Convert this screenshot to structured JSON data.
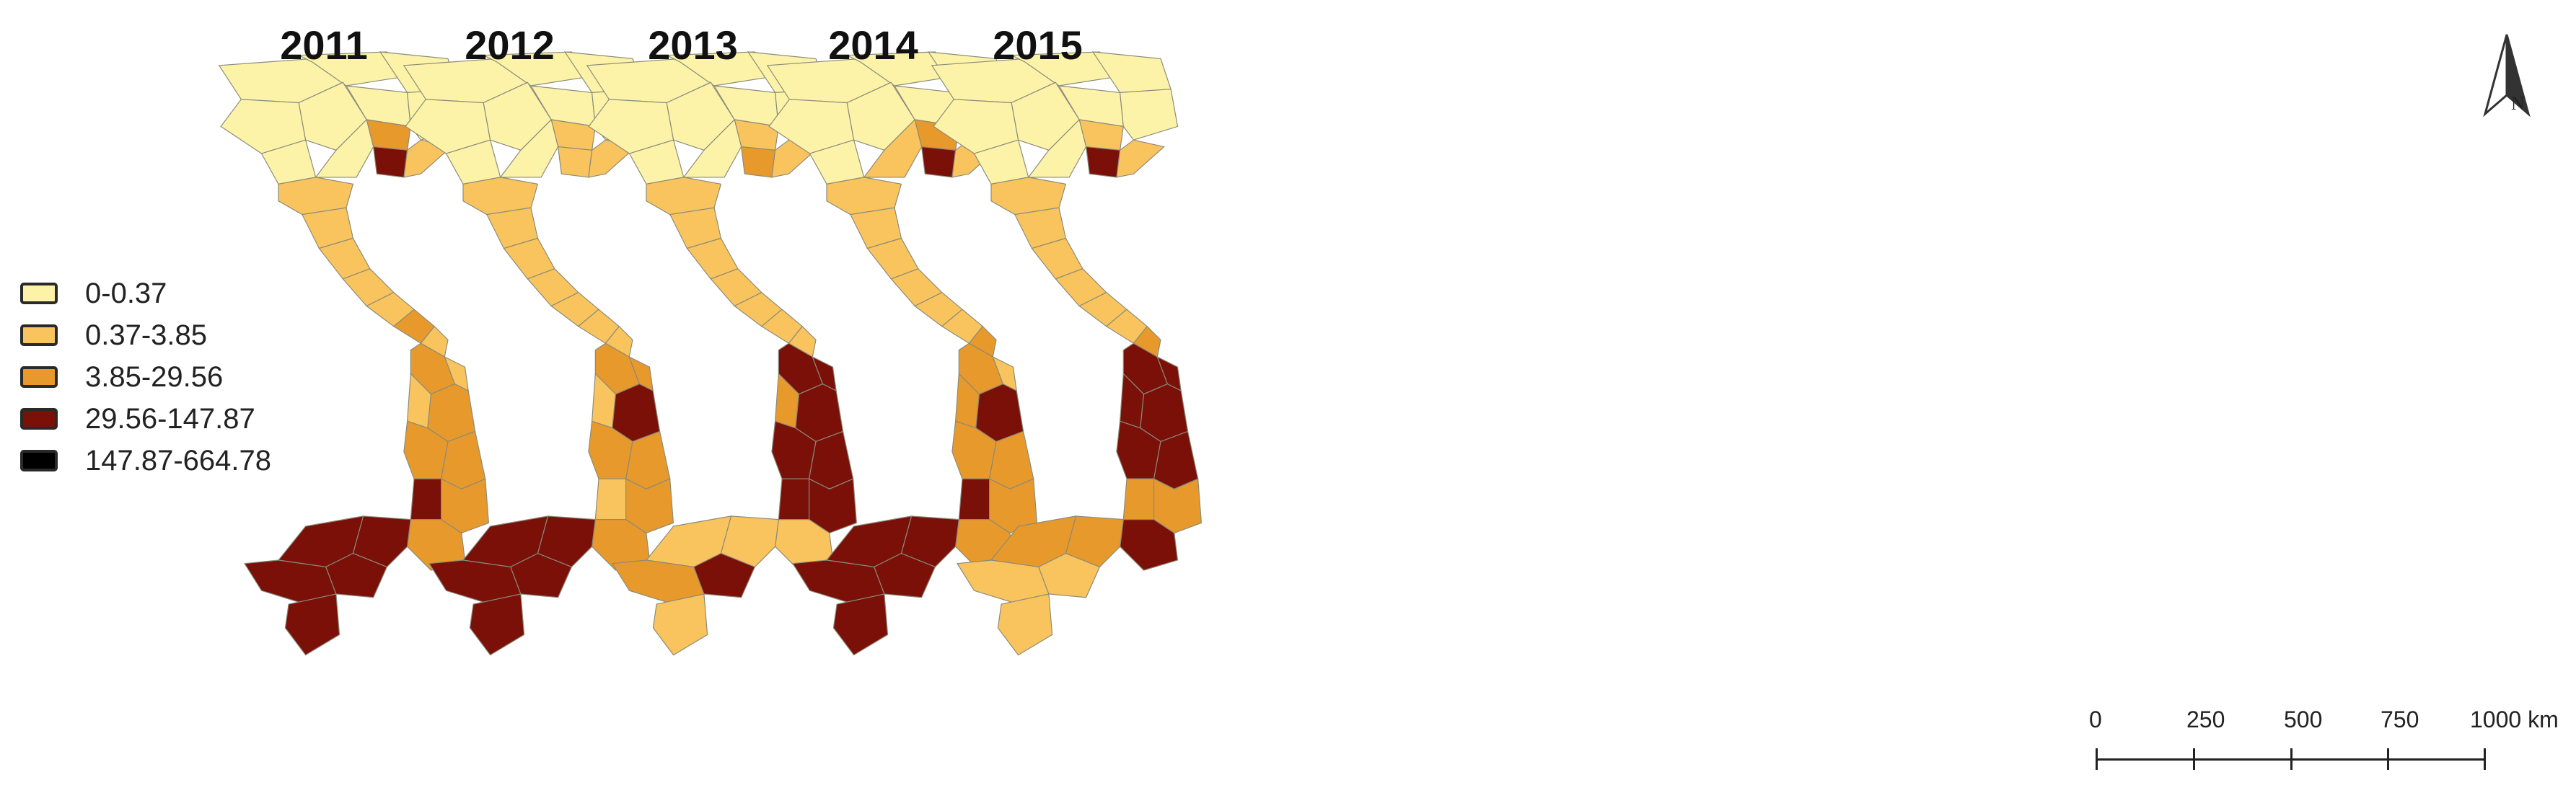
{
  "years": [
    "2011",
    "2012",
    "2013",
    "2014",
    "2015"
  ],
  "legend": [
    {
      "label": "0-0.37",
      "color": "#fcf3a8"
    },
    {
      "label": "0.37-3.85",
      "color": "#f9c45d"
    },
    {
      "label": "3.85-29.56",
      "color": "#e79a2b"
    },
    {
      "label": "29.56-147.87",
      "color": "#7a1008"
    },
    {
      "label": "147.87-664.78",
      "color": "#000000"
    }
  ],
  "north_arrow": {
    "label": "N"
  },
  "scale": {
    "labels": [
      "0",
      "250",
      "500",
      "750",
      "1000 km"
    ]
  },
  "map_classes": [
    [
      0,
      0,
      0,
      0,
      0,
      0,
      0,
      0,
      2,
      3,
      0,
      1,
      1,
      1,
      1,
      1,
      1,
      2,
      1,
      2,
      1,
      1,
      2,
      2,
      2,
      3,
      2,
      2,
      3,
      3,
      3,
      3,
      3
    ],
    [
      0,
      0,
      0,
      0,
      0,
      0,
      0,
      0,
      1,
      1,
      0,
      1,
      1,
      1,
      1,
      1,
      1,
      1,
      1,
      2,
      2,
      1,
      3,
      2,
      2,
      1,
      2,
      2,
      3,
      3,
      3,
      3,
      3
    ],
    [
      0,
      0,
      0,
      0,
      0,
      0,
      0,
      0,
      1,
      2,
      0,
      1,
      1,
      1,
      1,
      1,
      1,
      1,
      1,
      3,
      3,
      2,
      3,
      3,
      3,
      3,
      3,
      1,
      1,
      1,
      2,
      3,
      1
    ],
    [
      0,
      0,
      0,
      0,
      0,
      0,
      0,
      0,
      2,
      3,
      1,
      1,
      1,
      1,
      1,
      1,
      1,
      1,
      2,
      2,
      1,
      2,
      3,
      2,
      2,
      3,
      2,
      2,
      3,
      3,
      3,
      3,
      3
    ],
    [
      0,
      0,
      0,
      0,
      0,
      0,
      0,
      0,
      1,
      3,
      0,
      1,
      1,
      1,
      1,
      1,
      1,
      1,
      2,
      3,
      3,
      3,
      3,
      3,
      3,
      2,
      2,
      3,
      2,
      2,
      1,
      1,
      1
    ]
  ]
}
